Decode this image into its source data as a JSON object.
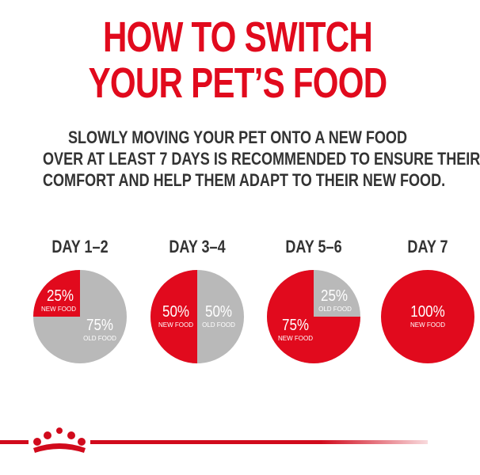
{
  "colors": {
    "accent": "#e10a1d",
    "grey": "#b9b9b9",
    "text": "#333333"
  },
  "title": {
    "line1": "HOW TO SWITCH",
    "line2": "YOUR PET’S FOOD"
  },
  "subtitle": {
    "line1": "SLOWLY MOVING YOUR PET ONTO A NEW FOOD",
    "line2": "OVER AT LEAST 7 DAYS IS RECOMMENDED TO ENSURE THEIR",
    "line3": "COMFORT AND HELP THEM ADAPT TO THEIR NEW FOOD."
  },
  "chart_data": [
    {
      "type": "pie",
      "title": "DAY 1–2",
      "slices": [
        {
          "label": "NEW FOOD",
          "value": 25,
          "text": "25%"
        },
        {
          "label": "OLD FOOD",
          "value": 75,
          "text": "75%"
        }
      ]
    },
    {
      "type": "pie",
      "title": "DAY 3–4",
      "slices": [
        {
          "label": "NEW FOOD",
          "value": 50,
          "text": "50%"
        },
        {
          "label": "OLD FOOD",
          "value": 50,
          "text": "50%"
        }
      ]
    },
    {
      "type": "pie",
      "title": "DAY 5–6",
      "slices": [
        {
          "label": "NEW FOOD",
          "value": 75,
          "text": "75%"
        },
        {
          "label": "OLD FOOD",
          "value": 25,
          "text": "25%"
        }
      ]
    },
    {
      "type": "pie",
      "title": "DAY 7",
      "slices": [
        {
          "label": "NEW FOOD",
          "value": 100,
          "text": "100%"
        }
      ]
    }
  ],
  "logo": {
    "icon": "crown-logo-icon"
  }
}
